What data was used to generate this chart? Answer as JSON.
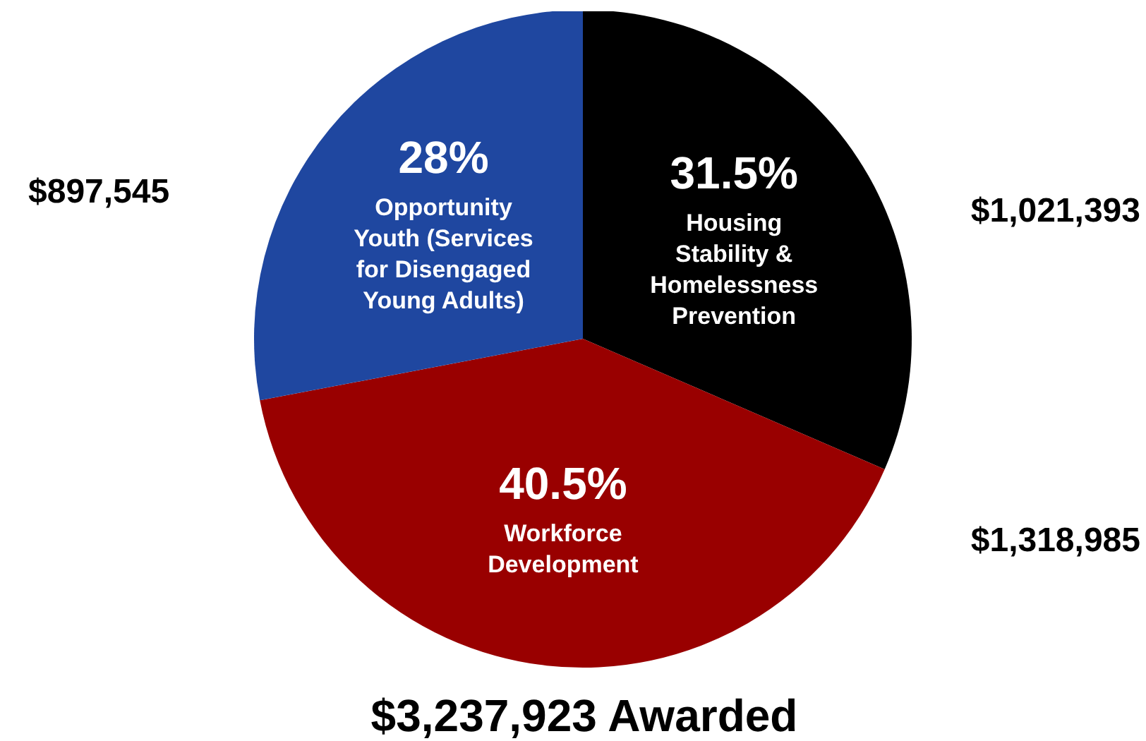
{
  "chart_data": {
    "type": "pie",
    "title": "$3,237,923 Awarded",
    "categories": [
      "Housing Stability & Homelessness Prevention",
      "Workforce Development",
      "Opportunity Youth (Services for Disengaged Young Adults)"
    ],
    "values": [
      31.5,
      40.5,
      28
    ],
    "value_labels": [
      "31.5%",
      "40.5%",
      "28%"
    ],
    "colors": [
      "#000000",
      "#990000",
      "#1f47a0"
    ],
    "annotations": [
      {
        "text": "$1,021,393",
        "x": "Housing Stability & Homelessness Prevention"
      },
      {
        "text": "$1,318,985",
        "x": "Workforce Development"
      },
      {
        "text": "$897,545",
        "x": "Opportunity Youth (Services for Disengaged Young Adults)"
      }
    ]
  }
}
